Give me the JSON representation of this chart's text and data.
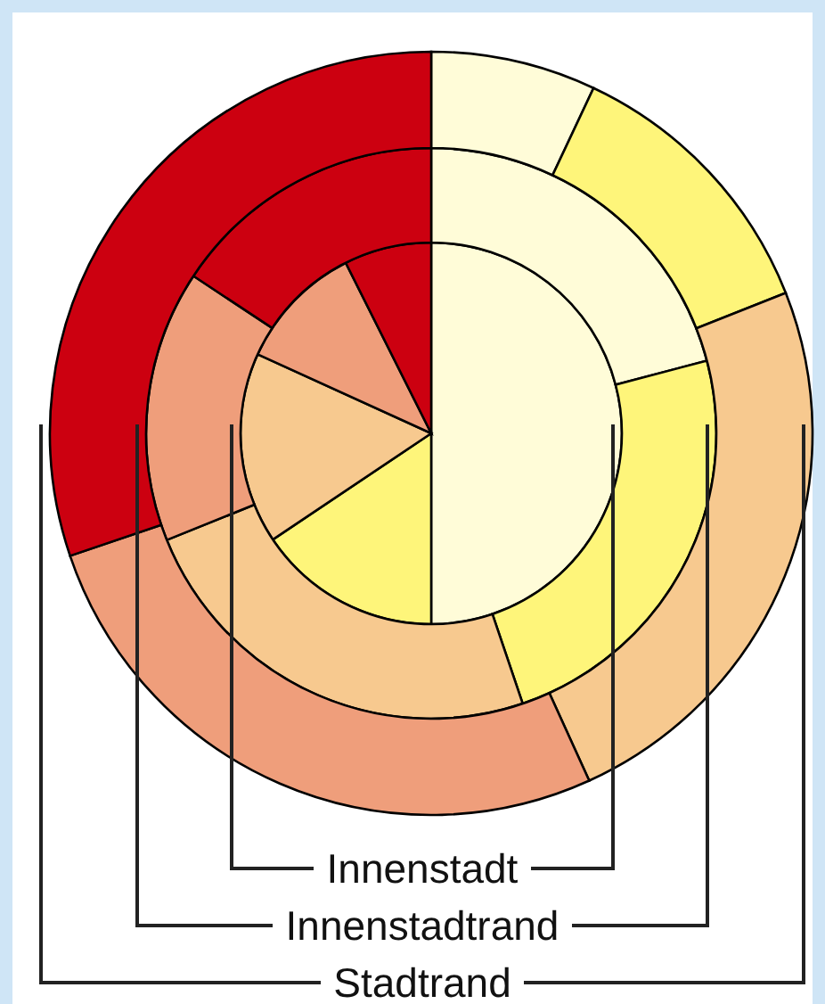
{
  "chart_data": [
    {
      "type": "pie",
      "title": "Innenstadt",
      "categories": [
        null,
        null,
        null,
        null,
        null
      ],
      "values": [
        50,
        15.6,
        16.2,
        10.8,
        7.4
      ],
      "colors": [
        "#fffcd8",
        "#fef57a",
        "#f7c98f",
        "#ef9e7b",
        "#cc0010"
      ]
    },
    {
      "type": "donut",
      "title": "Innenstadtrand",
      "categories": [
        null,
        null,
        null,
        null,
        null
      ],
      "values": [
        20.9,
        23.9,
        24.1,
        15.4,
        15.7
      ],
      "colors": [
        "#fffcd8",
        "#fef57a",
        "#f7c98f",
        "#ef9e7b",
        "#cc0010"
      ]
    },
    {
      "type": "donut",
      "title": "Stadtrand",
      "categories": [
        null,
        null,
        null,
        null,
        null
      ],
      "values": [
        7,
        12,
        24.2,
        26.6,
        30.2
      ],
      "colors": [
        "#fffcd8",
        "#fef57a",
        "#f7c98f",
        "#ef9e7b",
        "#cc0010"
      ]
    }
  ]
}
